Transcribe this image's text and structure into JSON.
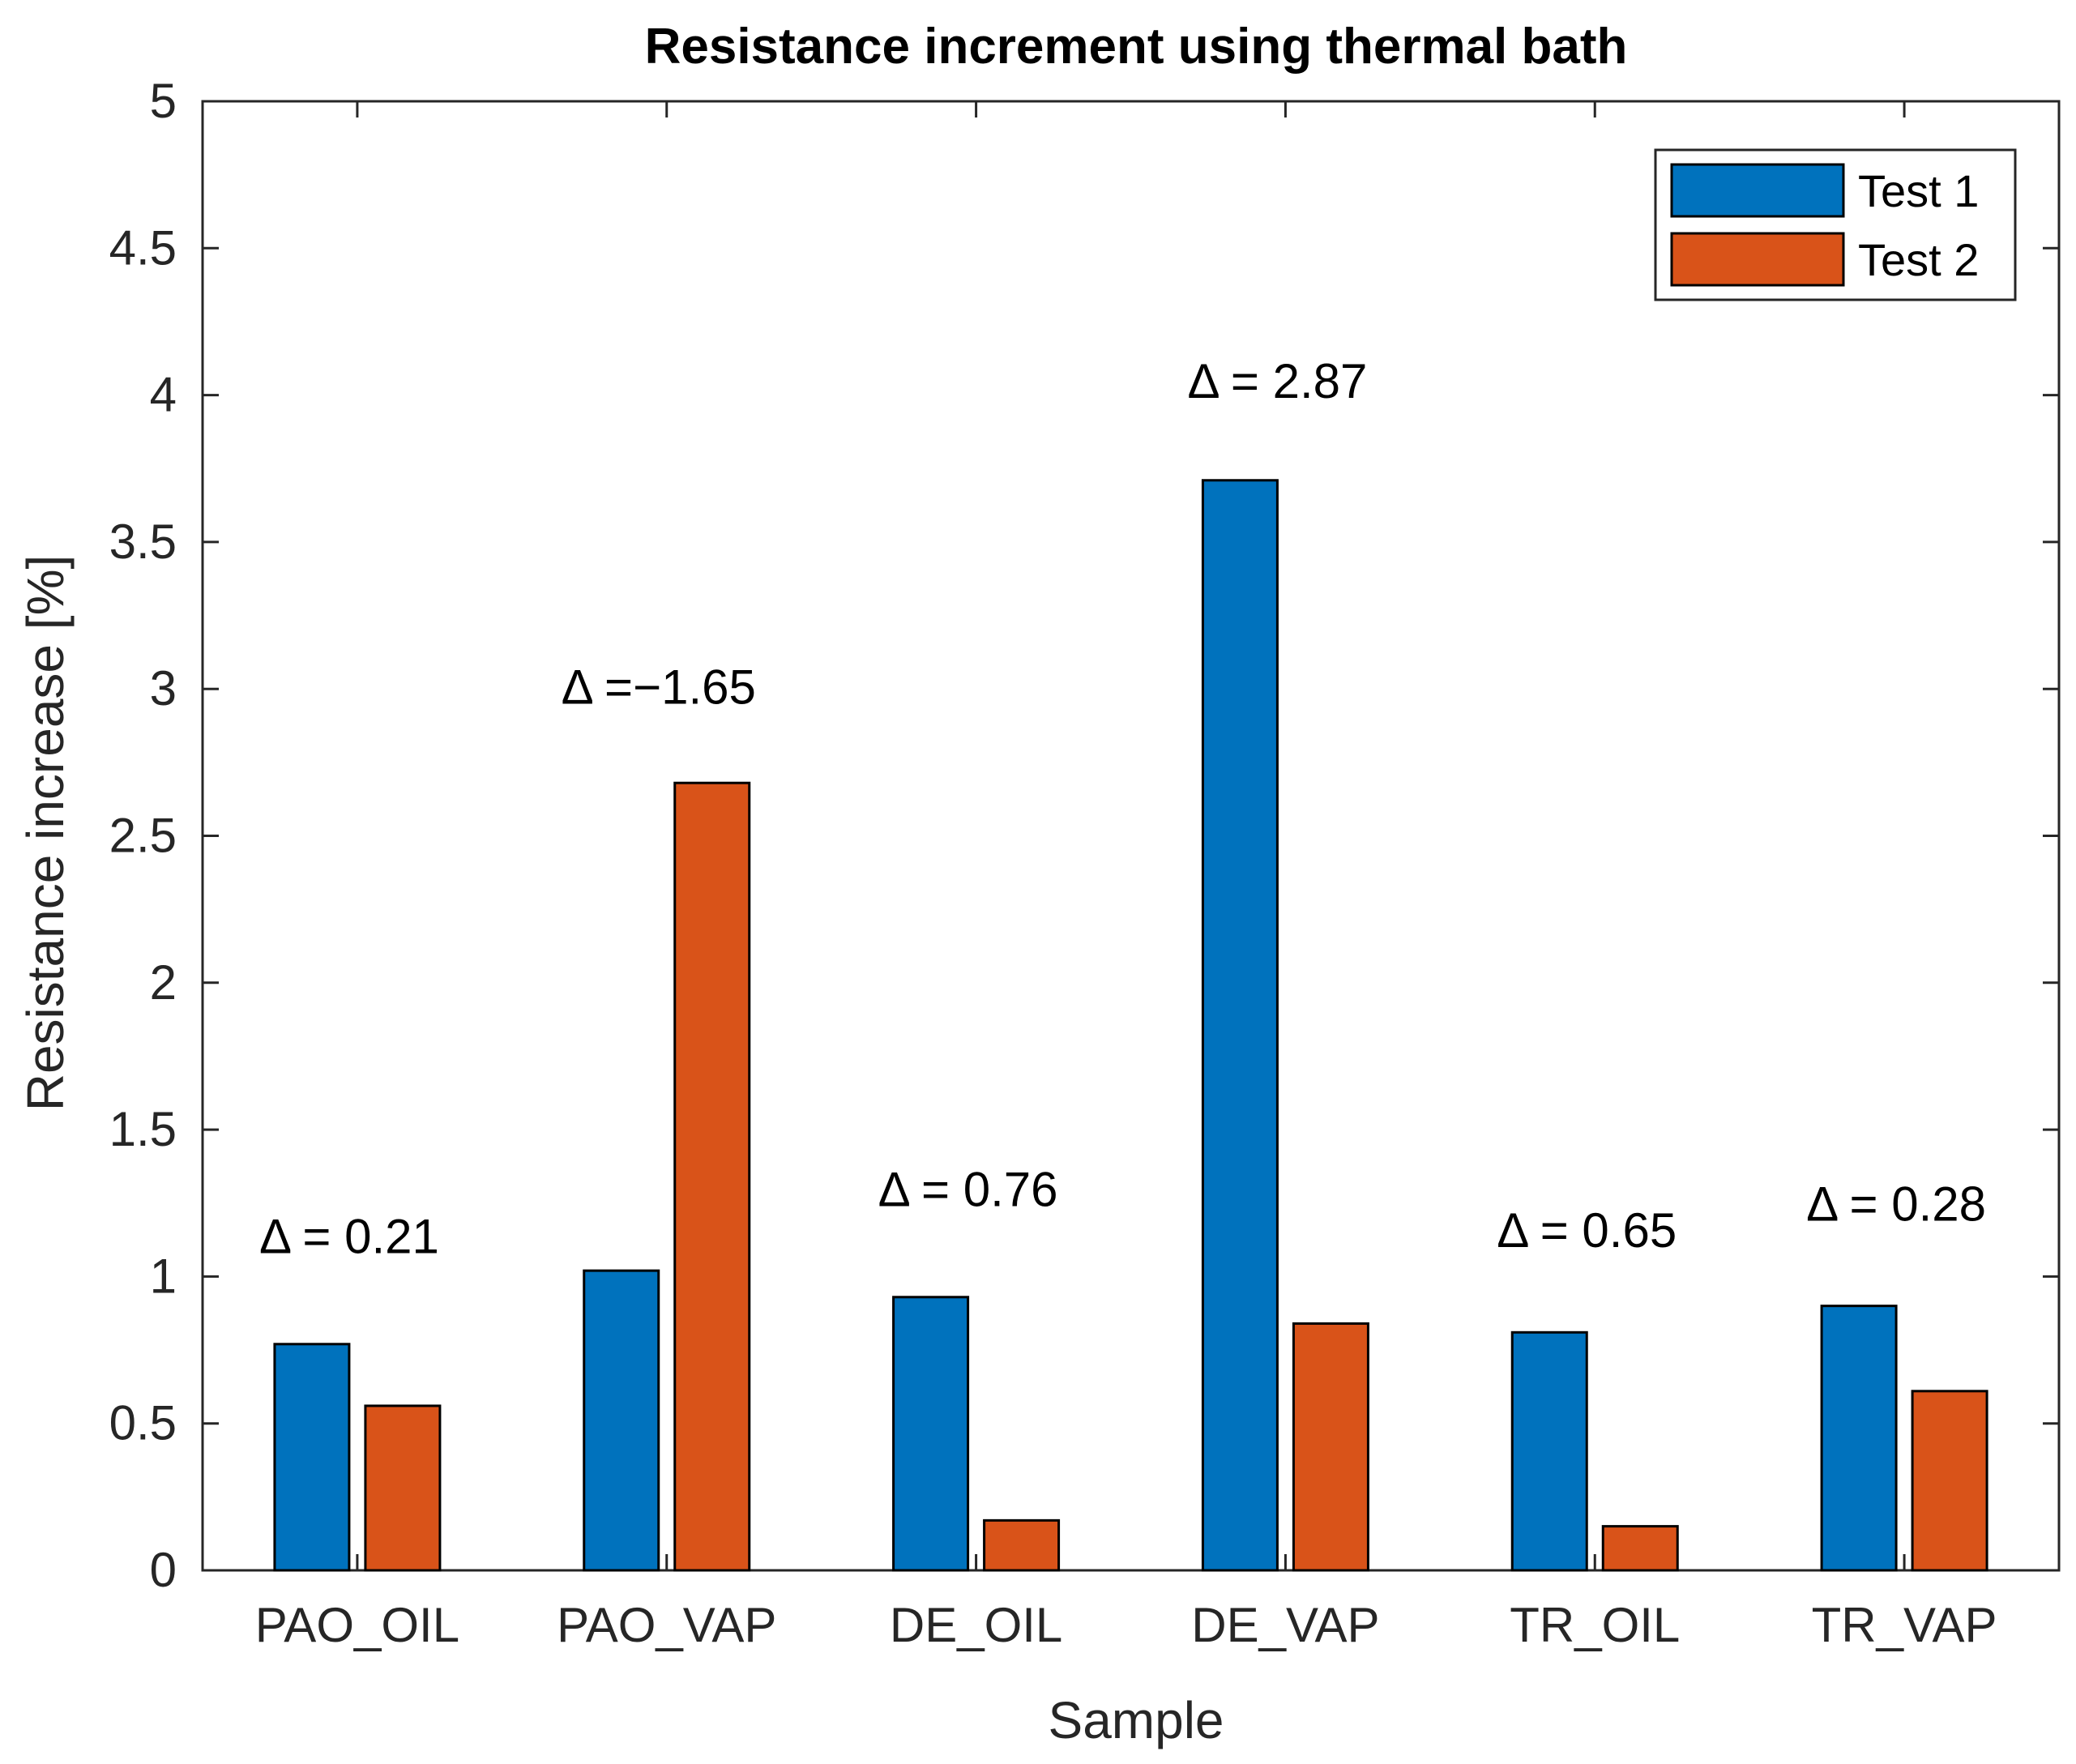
{
  "chart_data": {
    "type": "bar",
    "title": "Resistance increment using thermal bath",
    "xlabel": "Sample",
    "ylabel": "Resistance increase [%]",
    "ylim": [
      0,
      5
    ],
    "yticks": [
      "0",
      "0.5",
      "1",
      "1.5",
      "2",
      "2.5",
      "3",
      "3.5",
      "4",
      "4.5",
      "5"
    ],
    "categories": [
      "PAO_OIL",
      "PAO_VAP",
      "DE_OIL",
      "DE_VAP",
      "TR_OIL",
      "TR_VAP"
    ],
    "series": [
      {
        "name": "Test 1",
        "color": "#0072BD",
        "values": [
          0.77,
          1.02,
          0.93,
          3.71,
          0.81,
          0.9
        ]
      },
      {
        "name": "Test 2",
        "color": "#D95319",
        "values": [
          0.56,
          2.68,
          0.17,
          0.84,
          0.15,
          0.61
        ]
      }
    ],
    "annotations": [
      {
        "category": "PAO_OIL",
        "text": "Δ = 0.21",
        "y": 1.08
      },
      {
        "category": "PAO_VAP",
        "text": "Δ =−1.65",
        "y": 2.95
      },
      {
        "category": "DE_OIL",
        "text": "Δ = 0.76",
        "y": 1.24
      },
      {
        "category": "DE_VAP",
        "text": "Δ = 2.87",
        "y": 3.99
      },
      {
        "category": "TR_OIL",
        "text": "Δ = 0.65",
        "y": 1.1
      },
      {
        "category": "TR_VAP",
        "text": "Δ = 0.28",
        "y": 1.19
      }
    ],
    "legend": {
      "position": "top-right",
      "entries": [
        "Test 1",
        "Test 2"
      ]
    },
    "grid": false
  }
}
